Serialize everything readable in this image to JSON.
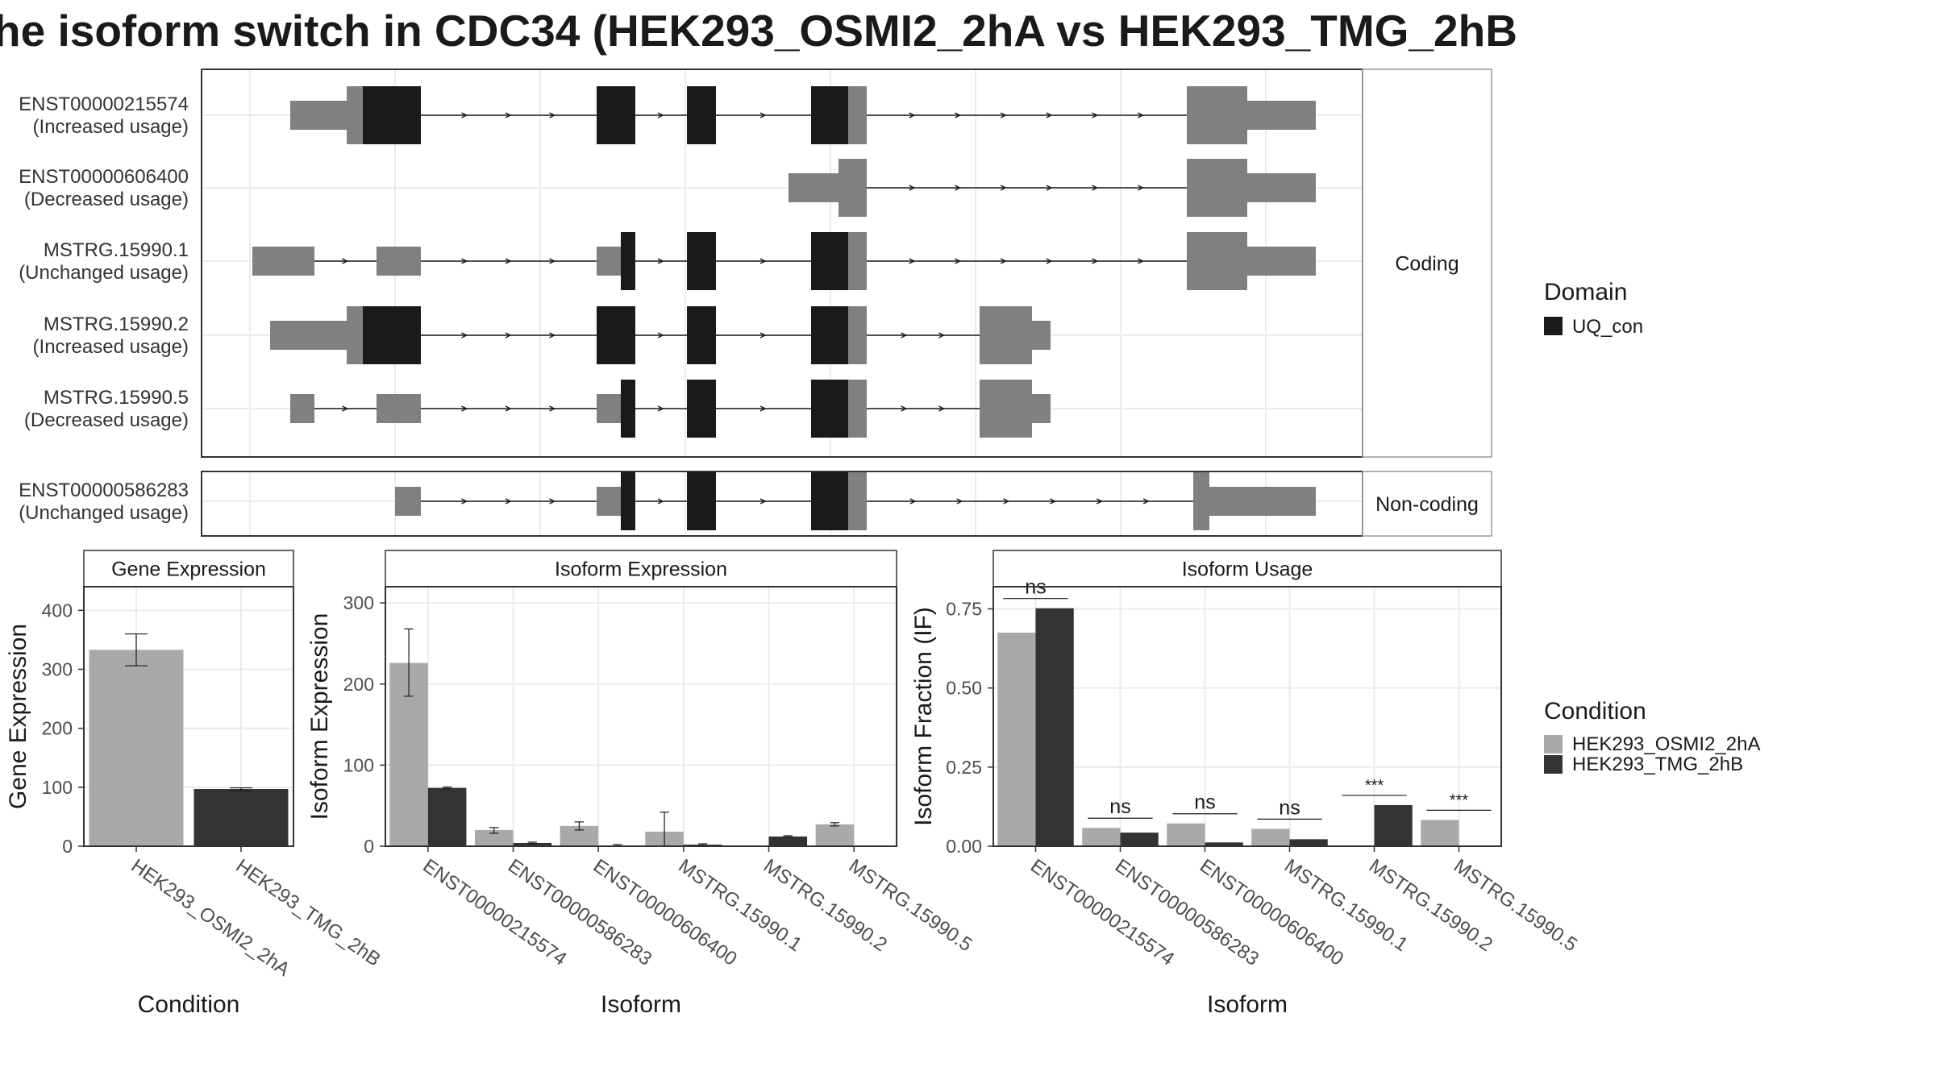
{
  "title": "he isoform switch in CDC34 (HEK293_OSMI2_2hA vs HEK293_TMG_2hB",
  "colors": {
    "exon": "#808080",
    "domain": "#1a1a1a",
    "cond_a": "#a9a9a9",
    "cond_b": "#333333",
    "grid": "#ebebeb"
  },
  "structure": {
    "facets": [
      "Coding",
      "Non-coding"
    ],
    "transcripts": [
      {
        "id": "ENST00000215574",
        "usage": "(Increased usage)",
        "facet": "Coding"
      },
      {
        "id": "ENST00000606400",
        "usage": "(Decreased usage)",
        "facet": "Coding"
      },
      {
        "id": "MSTRG.15990.1",
        "usage": "(Unchanged usage)",
        "facet": "Coding"
      },
      {
        "id": "MSTRG.15990.2",
        "usage": "(Increased usage)",
        "facet": "Coding"
      },
      {
        "id": "MSTRG.15990.5",
        "usage": "(Decreased usage)",
        "facet": "Coding"
      },
      {
        "id": "ENST00000586283",
        "usage": "(Unchanged usage)",
        "facet": "Non-coding"
      }
    ]
  },
  "legend_domain": {
    "title": "Domain",
    "items": [
      "UQ_con"
    ]
  },
  "legend_condition": {
    "title": "Condition",
    "items": [
      "HEK293_OSMI2_2hA",
      "HEK293_TMG_2hB"
    ]
  },
  "chart_data": [
    {
      "type": "bar",
      "title": "Gene Expression",
      "xlabel": "Condition",
      "ylabel": "Gene Expression",
      "categories": [
        "HEK293_OSMI2_2hA",
        "HEK293_TMG_2hB"
      ],
      "values": [
        333,
        97
      ],
      "error_low": [
        306,
        94
      ],
      "error_high": [
        360,
        99
      ],
      "ylim": [
        0,
        440
      ],
      "yticks": [
        0,
        100,
        200,
        300,
        400
      ]
    },
    {
      "type": "bar",
      "title": "Isoform Expression",
      "xlabel": "Isoform",
      "ylabel": "Isoform Expression",
      "categories": [
        "ENST00000215574",
        "ENST00000586283",
        "ENST00000606400",
        "MSTRG.15990.1",
        "MSTRG.15990.2",
        "MSTRG.15990.5"
      ],
      "series": [
        {
          "name": "HEK293_OSMI2_2hA",
          "values": [
            226,
            20,
            25,
            18,
            0,
            27
          ],
          "error_low": [
            185,
            16,
            20,
            0,
            0,
            25
          ],
          "error_high": [
            268,
            23,
            30,
            42,
            0,
            29
          ]
        },
        {
          "name": "HEK293_TMG_2hB",
          "values": [
            72,
            4,
            1,
            2,
            12,
            0
          ],
          "error_low": [
            71,
            3,
            0,
            1,
            11,
            0
          ],
          "error_high": [
            73,
            5,
            2,
            3,
            13,
            0
          ]
        }
      ],
      "ylim": [
        0,
        320
      ],
      "yticks": [
        0,
        100,
        200,
        300
      ]
    },
    {
      "type": "bar",
      "title": "Isoform Usage",
      "xlabel": "Isoform",
      "ylabel": "Isoform Fraction (IF)",
      "categories": [
        "ENST00000215574",
        "ENST00000586283",
        "ENST00000606400",
        "MSTRG.15990.1",
        "MSTRG.15990.2",
        "MSTRG.15990.5"
      ],
      "series": [
        {
          "name": "HEK293_OSMI2_2hA",
          "values": [
            0.675,
            0.058,
            0.072,
            0.055,
            0.0,
            0.083
          ]
        },
        {
          "name": "HEK293_TMG_2hB",
          "values": [
            0.752,
            0.043,
            0.012,
            0.022,
            0.13,
            0.0
          ]
        }
      ],
      "significance": [
        "ns",
        "ns",
        "ns",
        "ns",
        "***",
        "***"
      ],
      "ylim": [
        0,
        0.82
      ],
      "yticks": [
        "0.00",
        "0.25",
        "0.50",
        "0.75"
      ]
    }
  ]
}
